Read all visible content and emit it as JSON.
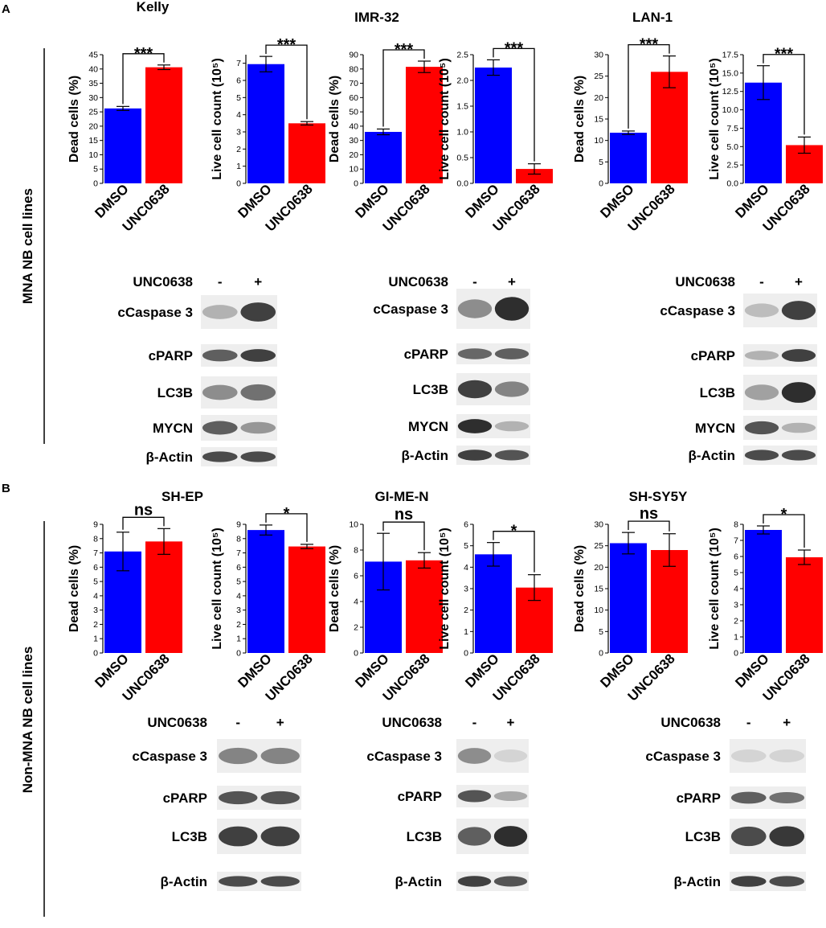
{
  "colors": {
    "dmso": "#0000ff",
    "unc": "#ff0000",
    "band": "#1a1a1a",
    "blot_bg": "#eeeeee"
  },
  "panel_labels": [
    "A",
    "B"
  ],
  "side_labels": [
    "MNA NB cell lines",
    "Non-MNA NB cell lines"
  ],
  "chart_data": [
    {
      "type": "bar",
      "panel": "A",
      "cell_line": "Kelly",
      "title": "Kelly",
      "ylabel": "Dead cells (%)",
      "categories": [
        "DMSO",
        "UNC0638"
      ],
      "values": [
        26.2,
        40.6
      ],
      "errors": [
        0.7,
        0.8
      ],
      "ylim": [
        0,
        45
      ],
      "ticks": [
        0,
        5,
        10,
        15,
        20,
        25,
        30,
        35,
        40,
        45
      ],
      "tick_labels": [
        "0",
        "5",
        "10",
        "15",
        "20",
        "25",
        "30",
        "35",
        "40",
        "45"
      ],
      "significance": "***"
    },
    {
      "type": "bar",
      "panel": "A",
      "cell_line": "Kelly",
      "ylabel": "Live cell count (10⁵)",
      "categories": [
        "DMSO",
        "UNC0638"
      ],
      "values": [
        6.95,
        3.5
      ],
      "errors": [
        0.45,
        0.1
      ],
      "ylim": [
        0,
        7.5
      ],
      "ticks": [
        0,
        1,
        2,
        3,
        4,
        5,
        6,
        7
      ],
      "tick_labels": [
        "0",
        "1",
        "2",
        "3",
        "4",
        "5",
        "6",
        "7"
      ],
      "significance": "***"
    },
    {
      "type": "bar",
      "panel": "A",
      "cell_line": "IMR-32",
      "title": "IMR-32",
      "ylabel": "Dead cells (%)",
      "categories": [
        "DMSO",
        "UNC0638"
      ],
      "values": [
        36,
        81.5
      ],
      "errors": [
        2,
        4
      ],
      "ylim": [
        0,
        90
      ],
      "ticks": [
        0,
        10,
        20,
        30,
        40,
        50,
        60,
        70,
        80,
        90
      ],
      "tick_labels": [
        "0",
        "10",
        "20",
        "30",
        "40",
        "50",
        "60",
        "70",
        "80",
        "90"
      ],
      "significance": "***"
    },
    {
      "type": "bar",
      "panel": "A",
      "cell_line": "IMR-32",
      "ylabel": "Live cell count (10⁵)",
      "categories": [
        "DMSO",
        "UNC0638"
      ],
      "values": [
        2.25,
        0.28
      ],
      "errors": [
        0.15,
        0.1
      ],
      "ylim": [
        0,
        2.5
      ],
      "ticks": [
        0,
        0.5,
        1.0,
        1.5,
        2.0,
        2.5
      ],
      "tick_labels": [
        "0.0",
        "0.5",
        "1.0",
        "1.5",
        "2.0",
        "2.5"
      ],
      "significance": "***"
    },
    {
      "type": "bar",
      "panel": "A",
      "cell_line": "LAN-1",
      "title": "LAN-1",
      "ylabel": "Dead cells (%)",
      "categories": [
        "DMSO",
        "UNC0638"
      ],
      "values": [
        11.8,
        26
      ],
      "errors": [
        0.4,
        3.7
      ],
      "ylim": [
        0,
        30
      ],
      "ticks": [
        0,
        5,
        10,
        15,
        20,
        25,
        30
      ],
      "tick_labels": [
        "0",
        "5",
        "10",
        "15",
        "20",
        "25",
        "30"
      ],
      "significance": "***"
    },
    {
      "type": "bar",
      "panel": "A",
      "cell_line": "LAN-1",
      "ylabel": "Live cell count (10⁵)",
      "categories": [
        "DMSO",
        "UNC0638"
      ],
      "values": [
        13.7,
        5.2
      ],
      "errors": [
        2.3,
        1.1
      ],
      "ylim": [
        0,
        17.5
      ],
      "ticks": [
        0,
        2.5,
        5,
        7.5,
        10,
        12.5,
        15,
        17.5
      ],
      "tick_labels": [
        "0.0",
        "2.5",
        "5.0",
        "7.5",
        "10.0",
        "12.5",
        "15.0",
        "17.5"
      ],
      "significance": "***"
    },
    {
      "type": "bar",
      "panel": "B",
      "cell_line": "SH-EP",
      "title": "SH-EP",
      "ylabel": "Dead cells (%)",
      "categories": [
        "DMSO",
        "UNC0638"
      ],
      "values": [
        7.1,
        7.8
      ],
      "errors": [
        1.35,
        0.9
      ],
      "ylim": [
        0,
        9
      ],
      "ticks": [
        0,
        1,
        2,
        3,
        4,
        5,
        6,
        7,
        8,
        9
      ],
      "tick_labels": [
        "0",
        "1",
        "2",
        "3",
        "4",
        "5",
        "6",
        "7",
        "8",
        "9"
      ],
      "significance": "ns"
    },
    {
      "type": "bar",
      "panel": "B",
      "cell_line": "SH-EP",
      "ylabel": "Live cell count (10⁵)",
      "categories": [
        "DMSO",
        "UNC0638"
      ],
      "values": [
        8.6,
        7.45
      ],
      "errors": [
        0.35,
        0.15
      ],
      "ylim": [
        0,
        9
      ],
      "ticks": [
        0,
        1,
        2,
        3,
        4,
        5,
        6,
        7,
        8,
        9
      ],
      "tick_labels": [
        "0",
        "1",
        "2",
        "3",
        "4",
        "5",
        "6",
        "7",
        "8",
        "9"
      ],
      "significance": "*"
    },
    {
      "type": "bar",
      "panel": "B",
      "cell_line": "GI-ME-N",
      "title": "GI-ME-N",
      "ylabel": "Dead cells (%)",
      "categories": [
        "DMSO",
        "UNC0638"
      ],
      "values": [
        7.1,
        7.2
      ],
      "errors": [
        2.2,
        0.6
      ],
      "ylim": [
        0,
        10
      ],
      "ticks": [
        0,
        2,
        4,
        6,
        8,
        10
      ],
      "tick_labels": [
        "0",
        "2",
        "4",
        "6",
        "8",
        "10"
      ],
      "significance": "ns"
    },
    {
      "type": "bar",
      "panel": "B",
      "cell_line": "GI-ME-N",
      "ylabel": "Live cell count (10⁵)",
      "categories": [
        "DMSO",
        "UNC0638"
      ],
      "values": [
        4.6,
        3.05
      ],
      "errors": [
        0.55,
        0.6
      ],
      "ylim": [
        0,
        6
      ],
      "ticks": [
        0,
        1,
        2,
        3,
        4,
        5,
        6
      ],
      "tick_labels": [
        "0",
        "1",
        "2",
        "3",
        "4",
        "5",
        "6"
      ],
      "significance": "*"
    },
    {
      "type": "bar",
      "panel": "B",
      "cell_line": "SH-SY5Y",
      "title": "SH-SY5Y",
      "ylabel": "Dead cells (%)",
      "categories": [
        "DMSO",
        "UNC0638"
      ],
      "values": [
        25.6,
        24
      ],
      "errors": [
        2.5,
        3.8
      ],
      "ylim": [
        0,
        30
      ],
      "ticks": [
        0,
        5,
        10,
        15,
        20,
        25,
        30
      ],
      "tick_labels": [
        "0",
        "5",
        "10",
        "15",
        "20",
        "25",
        "30"
      ],
      "significance": "ns"
    },
    {
      "type": "bar",
      "panel": "B",
      "cell_line": "SH-SY5Y",
      "ylabel": "Live cell count (10⁵)",
      "categories": [
        "DMSO",
        "UNC0638"
      ],
      "values": [
        7.65,
        5.95
      ],
      "errors": [
        0.25,
        0.45
      ],
      "ylim": [
        0,
        8
      ],
      "ticks": [
        0,
        1,
        2,
        3,
        4,
        5,
        6,
        7,
        8
      ],
      "tick_labels": [
        "0",
        "1",
        "2",
        "3",
        "4",
        "5",
        "6",
        "7",
        "8"
      ],
      "significance": "*"
    }
  ],
  "western_blots": [
    {
      "panel": "A",
      "cell_line": "Kelly",
      "treatment_label": "UNC0638",
      "lane_labels": [
        "-",
        "+"
      ],
      "rows": [
        {
          "label": "cCaspase 3",
          "intensity": [
            0.25,
            0.85
          ]
        },
        {
          "label": "cPARP",
          "intensity": [
            0.7,
            0.85
          ]
        },
        {
          "label": "LC3B",
          "intensity": [
            0.45,
            0.6
          ]
        },
        {
          "label": "MYCN",
          "intensity": [
            0.7,
            0.4
          ]
        },
        {
          "label": "β-Actin",
          "intensity": [
            0.8,
            0.8
          ]
        }
      ]
    },
    {
      "panel": "A",
      "cell_line": "IMR-32",
      "treatment_label": "UNC0638",
      "lane_labels": [
        "-",
        "+"
      ],
      "rows": [
        {
          "label": "cCaspase 3",
          "intensity": [
            0.45,
            0.95
          ]
        },
        {
          "label": "cPARP",
          "intensity": [
            0.65,
            0.7
          ]
        },
        {
          "label": "LC3B",
          "intensity": [
            0.85,
            0.5
          ]
        },
        {
          "label": "MYCN",
          "intensity": [
            0.95,
            0.25
          ]
        },
        {
          "label": "β-Actin",
          "intensity": [
            0.85,
            0.75
          ]
        }
      ]
    },
    {
      "panel": "A",
      "cell_line": "LAN-1",
      "treatment_label": "UNC0638",
      "lane_labels": [
        "-",
        "+"
      ],
      "rows": [
        {
          "label": "cCaspase 3",
          "intensity": [
            0.2,
            0.85
          ]
        },
        {
          "label": "cPARP",
          "intensity": [
            0.25,
            0.85
          ]
        },
        {
          "label": "LC3B",
          "intensity": [
            0.35,
            0.95
          ]
        },
        {
          "label": "MYCN",
          "intensity": [
            0.75,
            0.25
          ]
        },
        {
          "label": "β-Actin",
          "intensity": [
            0.8,
            0.8
          ]
        }
      ]
    },
    {
      "panel": "B",
      "cell_line": "SH-EP",
      "treatment_label": "UNC0638",
      "lane_labels": [
        "-",
        "+"
      ],
      "rows": [
        {
          "label": "cCaspase 3",
          "intensity": [
            0.5,
            0.5
          ]
        },
        {
          "label": "cPARP",
          "intensity": [
            0.75,
            0.75
          ]
        },
        {
          "label": "LC3B",
          "intensity": [
            0.85,
            0.85
          ]
        },
        {
          "label": "β-Actin",
          "intensity": [
            0.8,
            0.8
          ]
        }
      ]
    },
    {
      "panel": "B",
      "cell_line": "GI-ME-N",
      "treatment_label": "UNC0638",
      "lane_labels": [
        "-",
        "+"
      ],
      "rows": [
        {
          "label": "cCaspase 3",
          "intensity": [
            0.45,
            0.08
          ]
        },
        {
          "label": "cPARP",
          "intensity": [
            0.75,
            0.3
          ]
        },
        {
          "label": "LC3B",
          "intensity": [
            0.7,
            0.95
          ]
        },
        {
          "label": "β-Actin",
          "intensity": [
            0.85,
            0.75
          ]
        }
      ]
    },
    {
      "panel": "B",
      "cell_line": "SH-SY5Y",
      "treatment_label": "UNC0638",
      "lane_labels": [
        "-",
        "+"
      ],
      "rows": [
        {
          "label": "cCaspase 3",
          "intensity": [
            0.08,
            0.08
          ]
        },
        {
          "label": "cPARP",
          "intensity": [
            0.7,
            0.6
          ]
        },
        {
          "label": "LC3B",
          "intensity": [
            0.8,
            0.9
          ]
        },
        {
          "label": "β-Actin",
          "intensity": [
            0.85,
            0.8
          ]
        }
      ]
    }
  ]
}
